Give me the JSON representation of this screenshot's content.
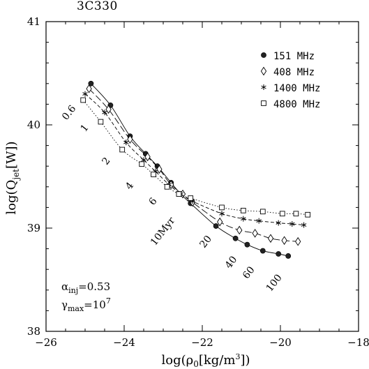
{
  "chart_data": {
    "type": "line",
    "title": "3C330",
    "xlabel": "log(ρ₀[kg/m³])",
    "ylabel": "log(Q_jet[W])",
    "xlim": [
      -26,
      -18
    ],
    "ylim": [
      38,
      41
    ],
    "xticks": [
      -26,
      -24,
      -22,
      -20,
      -18
    ],
    "yticks": [
      38,
      39,
      40,
      41
    ],
    "xtick_labels": [
      "−26",
      "−24",
      "−22",
      "−20",
      "−18"
    ],
    "ytick_labels": [
      "38",
      "39",
      "40",
      "41"
    ],
    "grid": false,
    "legend_position": "top-right",
    "series": [
      {
        "name": "151 MHz",
        "marker": "filled-circle",
        "line": "solid",
        "x": [
          -24.85,
          -24.35,
          -23.85,
          -23.45,
          -23.15,
          -22.8,
          -22.55,
          -22.3,
          -21.65,
          -21.15,
          -20.85,
          -20.45,
          -20.05,
          -19.8
        ],
        "y": [
          40.4,
          40.19,
          39.89,
          39.72,
          39.6,
          39.44,
          39.33,
          39.24,
          39.02,
          38.9,
          38.84,
          38.78,
          38.75,
          38.73
        ]
      },
      {
        "name": "408 MHz",
        "marker": "open-diamond",
        "line": "long-dash",
        "x": [
          -24.9,
          -24.4,
          -23.85,
          -23.4,
          -23.1,
          -22.8,
          -22.5,
          -22.25,
          -21.55,
          -21.05,
          -20.65,
          -20.25,
          -19.9,
          -19.55
        ],
        "y": [
          40.35,
          40.15,
          39.86,
          39.69,
          39.57,
          39.42,
          39.33,
          39.25,
          39.06,
          38.98,
          38.95,
          38.9,
          38.88,
          38.87
        ]
      },
      {
        "name": "1400 MHz",
        "marker": "asterisk",
        "line": "dash",
        "x": [
          -25.0,
          -24.5,
          -23.95,
          -23.5,
          -23.2,
          -22.85,
          -22.55,
          -22.25,
          -21.5,
          -20.95,
          -20.55,
          -20.05,
          -19.7,
          -19.4
        ],
        "y": [
          40.3,
          40.12,
          39.83,
          39.66,
          39.55,
          39.42,
          39.33,
          39.26,
          39.14,
          39.09,
          39.07,
          39.05,
          39.04,
          39.03
        ]
      },
      {
        "name": "4800 MHz",
        "marker": "open-square",
        "line": "dot",
        "x": [
          -25.05,
          -24.6,
          -24.05,
          -23.55,
          -23.25,
          -22.9,
          -22.6,
          -22.3,
          -21.5,
          -20.95,
          -20.45,
          -19.95,
          -19.6,
          -19.3
        ],
        "y": [
          40.24,
          40.03,
          39.76,
          39.62,
          39.52,
          39.4,
          39.33,
          39.29,
          39.2,
          39.17,
          39.16,
          39.14,
          39.14,
          39.13
        ]
      }
    ],
    "annotations": {
      "age_labels": [
        {
          "text": "0.6",
          "x": -25.35,
          "y": 40.1
        },
        {
          "text": "1",
          "x": -24.95,
          "y": 39.95
        },
        {
          "text": "2",
          "x": -24.4,
          "y": 39.63
        },
        {
          "text": "4",
          "x": -23.8,
          "y": 39.39
        },
        {
          "text": "6",
          "x": -23.2,
          "y": 39.24
        },
        {
          "text": "10Myr",
          "x": -22.95,
          "y": 38.95
        },
        {
          "text": "20",
          "x": -21.85,
          "y": 38.85
        },
        {
          "text": "40",
          "x": -21.2,
          "y": 38.65
        },
        {
          "text": "60",
          "x": -20.75,
          "y": 38.55
        },
        {
          "text": "100",
          "x": -20.1,
          "y": 38.45
        }
      ],
      "alpha_text": "α",
      "alpha_sub": "inj",
      "alpha_value": "=0.53",
      "gamma_text": "γ",
      "gamma_sub": "max",
      "gamma_value": "=10",
      "gamma_exp": "7"
    }
  }
}
